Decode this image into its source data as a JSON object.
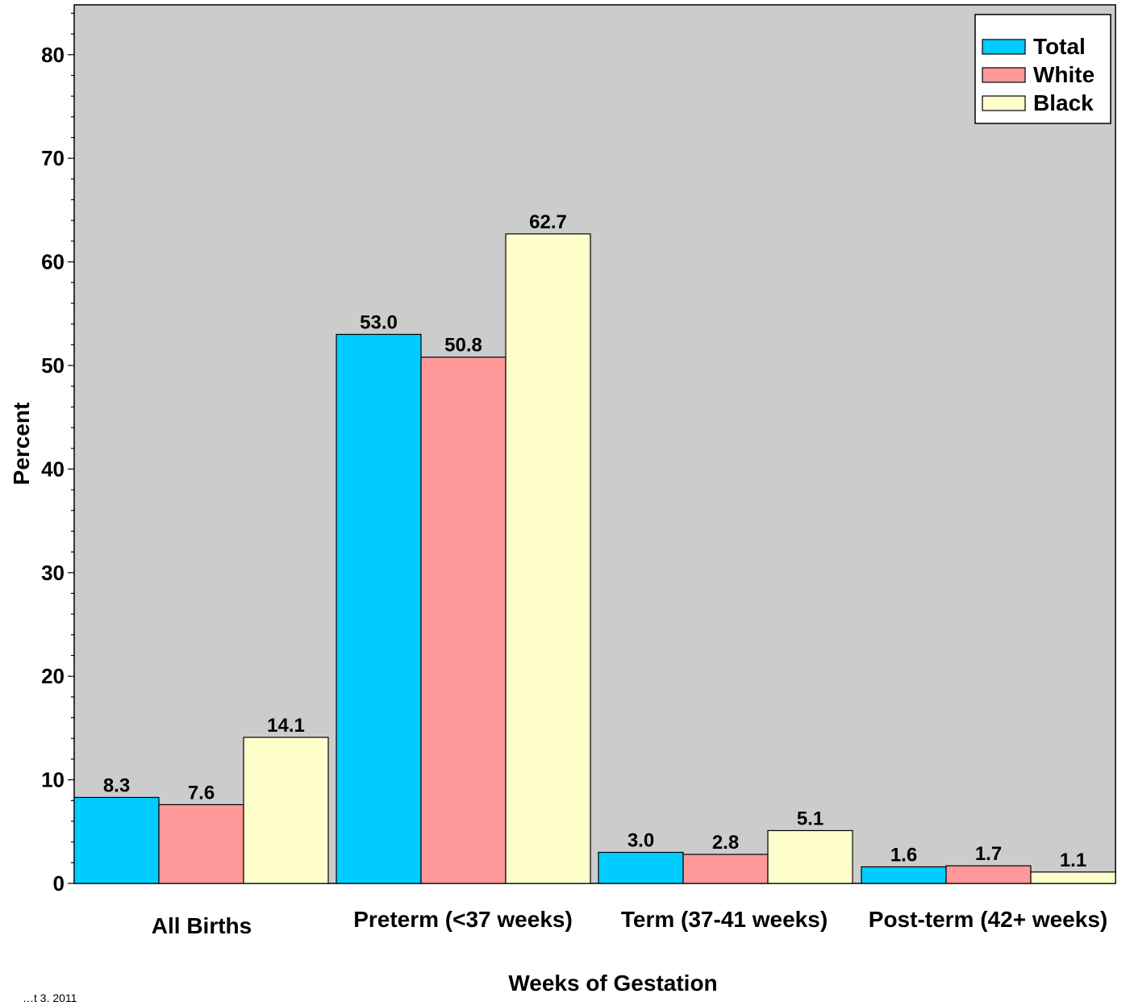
{
  "chart_data": {
    "type": "bar",
    "title": "",
    "xlabel": "Weeks of Gestation",
    "ylabel": "Percent",
    "ylim": [
      0,
      85
    ],
    "yticks": [
      0,
      10,
      20,
      30,
      40,
      50,
      60,
      70,
      80
    ],
    "grid": false,
    "legend_position": "top-right",
    "categories": [
      "All Births",
      "Preterm (<37 weeks)",
      "Term (37-41 weeks)",
      "Post-term (42+ weeks)"
    ],
    "series": [
      {
        "name": "Total",
        "color": "#00CCFF",
        "values": [
          8.3,
          53.0,
          3.0,
          1.6
        ],
        "labels": [
          "8.3",
          "53.0",
          "3.0",
          "1.6"
        ]
      },
      {
        "name": "White",
        "color": "#FF9999",
        "values": [
          7.6,
          50.8,
          2.8,
          1.7
        ],
        "labels": [
          "7.6",
          "50.8",
          "2.8",
          "1.7"
        ]
      },
      {
        "name": "Black",
        "color": "#FFFFCC",
        "values": [
          14.1,
          62.7,
          5.1,
          1.1
        ],
        "labels": [
          "14.1",
          "62.7",
          "5.1",
          "1.1"
        ]
      }
    ],
    "plot_background": "#CCCCCC",
    "footnote": "…t 3, 2011"
  }
}
